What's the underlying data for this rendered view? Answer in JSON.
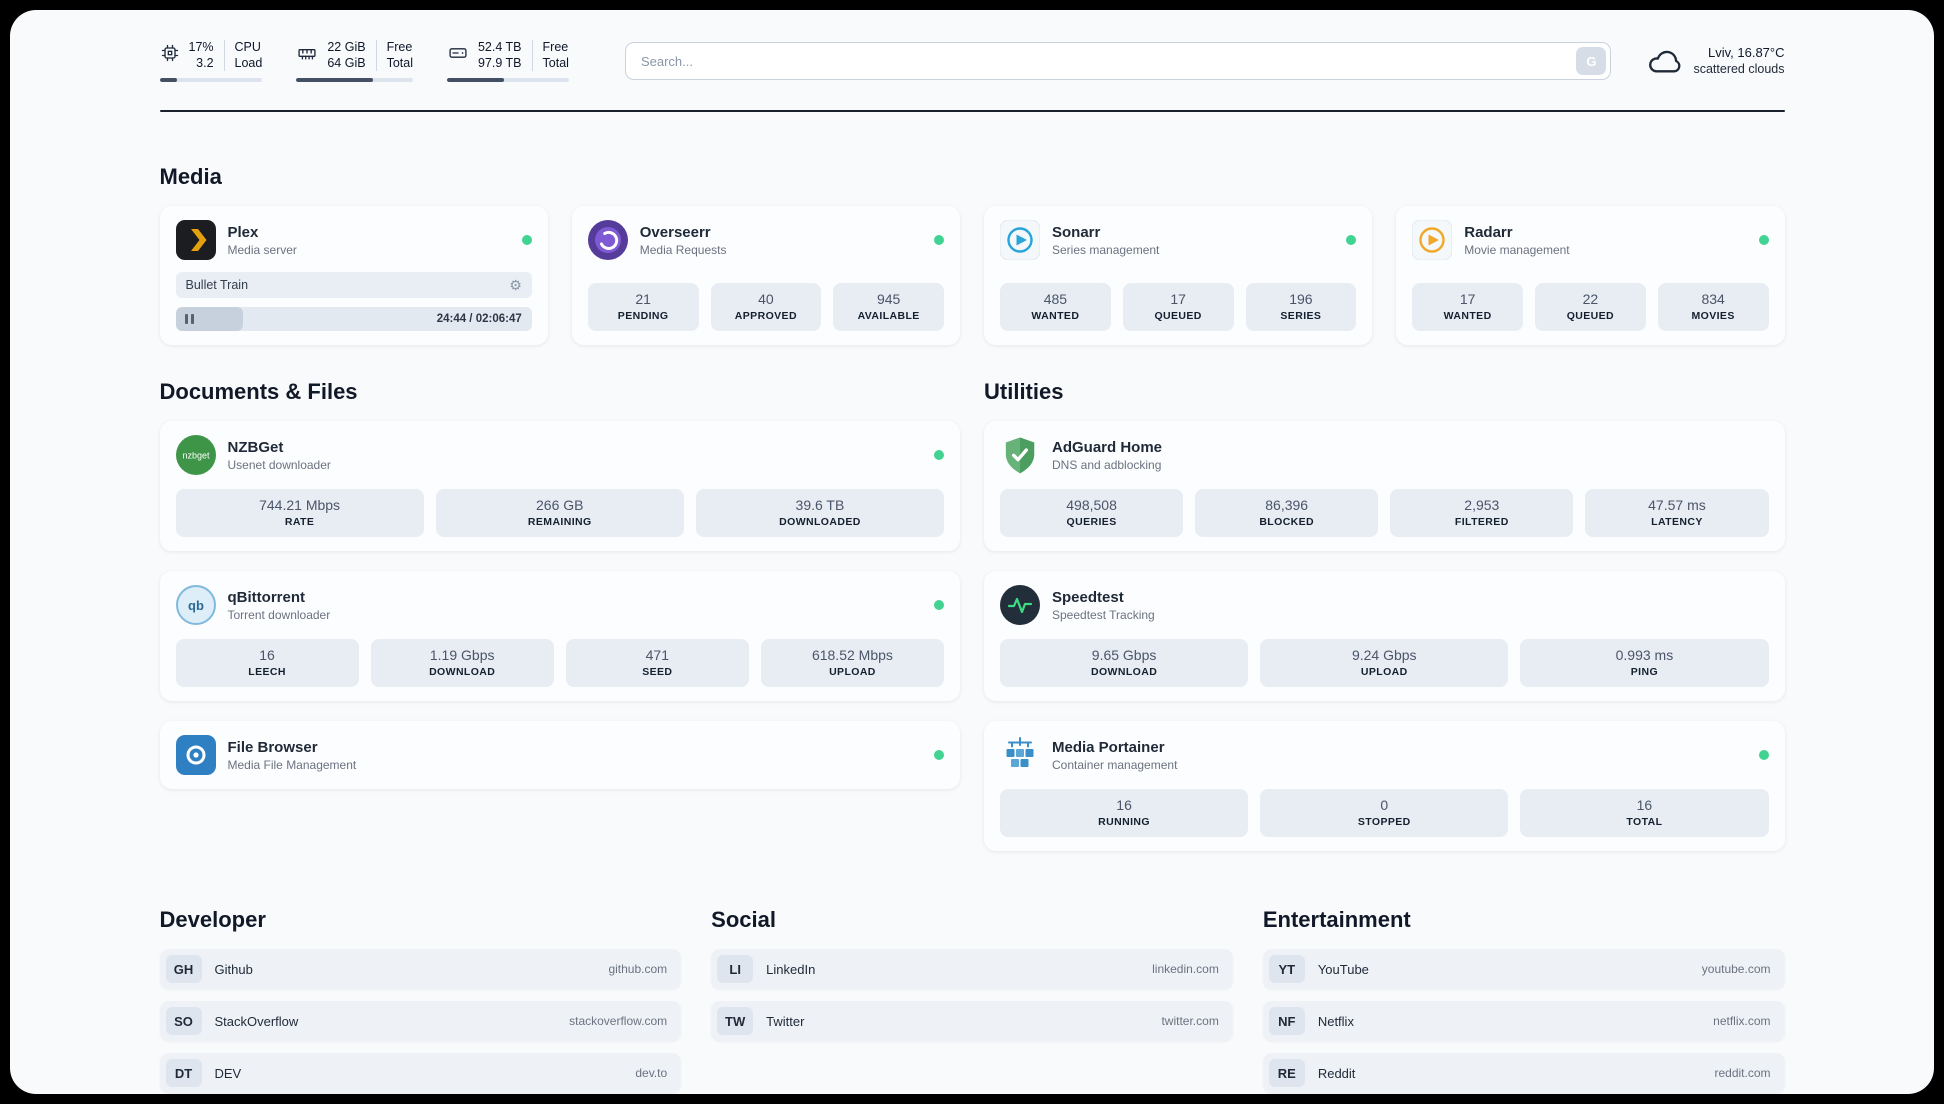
{
  "icons": {
    "gear": "⚙"
  },
  "header": {
    "cpu": {
      "value_top": "17%",
      "value_bottom": "3.2",
      "label_top": "CPU",
      "label_bottom": "Load",
      "progress": 17
    },
    "ram": {
      "value_top": "22 GiB",
      "value_bottom": "64 GiB",
      "label_top": "Free",
      "label_bottom": "Total",
      "progress": 66
    },
    "disk": {
      "value_top": "52.4 TB",
      "value_bottom": "97.9 TB",
      "label_top": "Free",
      "label_bottom": "Total",
      "progress": 47
    },
    "search": {
      "placeholder": "Search...",
      "button_label": "G"
    },
    "weather": {
      "location": "Lviv, 16.87°C",
      "condition": "scattered clouds"
    }
  },
  "sections": {
    "media": {
      "title": "Media",
      "plex": {
        "name": "Plex",
        "subtitle": "Media server",
        "now_playing": "Bullet Train",
        "time": "24:44 / 02:06:47",
        "progress": 19
      },
      "overseerr": {
        "name": "Overseerr",
        "subtitle": "Media Requests",
        "stats": [
          {
            "value": "21",
            "label": "PENDING"
          },
          {
            "value": "40",
            "label": "APPROVED"
          },
          {
            "value": "945",
            "label": "AVAILABLE"
          }
        ]
      },
      "sonarr": {
        "name": "Sonarr",
        "subtitle": "Series management",
        "stats": [
          {
            "value": "485",
            "label": "WANTED"
          },
          {
            "value": "17",
            "label": "QUEUED"
          },
          {
            "value": "196",
            "label": "SERIES"
          }
        ]
      },
      "radarr": {
        "name": "Radarr",
        "subtitle": "Movie management",
        "stats": [
          {
            "value": "17",
            "label": "WANTED"
          },
          {
            "value": "22",
            "label": "QUEUED"
          },
          {
            "value": "834",
            "label": "MOVIES"
          }
        ]
      }
    },
    "documents": {
      "title": "Documents & Files",
      "nzbget": {
        "name": "NZBGet",
        "subtitle": "Usenet downloader",
        "stats": [
          {
            "value": "744.21 Mbps",
            "label": "RATE"
          },
          {
            "value": "266 GB",
            "label": "REMAINING"
          },
          {
            "value": "39.6 TB",
            "label": "DOWNLOADED"
          }
        ]
      },
      "qbittorrent": {
        "name": "qBittorrent",
        "subtitle": "Torrent downloader",
        "stats": [
          {
            "value": "16",
            "label": "LEECH"
          },
          {
            "value": "1.19 Gbps",
            "label": "DOWNLOAD"
          },
          {
            "value": "471",
            "label": "SEED"
          },
          {
            "value": "618.52 Mbps",
            "label": "UPLOAD"
          }
        ]
      },
      "filebrowser": {
        "name": "File Browser",
        "subtitle": "Media File Management"
      }
    },
    "utilities": {
      "title": "Utilities",
      "adguard": {
        "name": "AdGuard Home",
        "subtitle": "DNS and adblocking",
        "stats": [
          {
            "value": "498,508",
            "label": "QUERIES"
          },
          {
            "value": "86,396",
            "label": "BLOCKED"
          },
          {
            "value": "2,953",
            "label": "FILTERED"
          },
          {
            "value": "47.57 ms",
            "label": "LATENCY"
          }
        ]
      },
      "speedtest": {
        "name": "Speedtest",
        "subtitle": "Speedtest Tracking",
        "stats": [
          {
            "value": "9.65 Gbps",
            "label": "DOWNLOAD"
          },
          {
            "value": "9.24 Gbps",
            "label": "UPLOAD"
          },
          {
            "value": "0.993 ms",
            "label": "PING"
          }
        ]
      },
      "portainer": {
        "name": "Media Portainer",
        "subtitle": "Container management",
        "stats": [
          {
            "value": "16",
            "label": "RUNNING"
          },
          {
            "value": "0",
            "label": "STOPPED"
          },
          {
            "value": "16",
            "label": "TOTAL"
          }
        ]
      }
    },
    "developer": {
      "title": "Developer",
      "links": [
        {
          "abbr": "GH",
          "name": "Github",
          "url": "github.com"
        },
        {
          "abbr": "SO",
          "name": "StackOverflow",
          "url": "stackoverflow.com"
        },
        {
          "abbr": "DT",
          "name": "DEV",
          "url": "dev.to"
        }
      ]
    },
    "social": {
      "title": "Social",
      "links": [
        {
          "abbr": "LI",
          "name": "LinkedIn",
          "url": "linkedin.com"
        },
        {
          "abbr": "TW",
          "name": "Twitter",
          "url": "twitter.com"
        }
      ]
    },
    "entertainment": {
      "title": "Entertainment",
      "links": [
        {
          "abbr": "YT",
          "name": "YouTube",
          "url": "youtube.com"
        },
        {
          "abbr": "NF",
          "name": "Netflix",
          "url": "netflix.com"
        },
        {
          "abbr": "RE",
          "name": "Reddit",
          "url": "reddit.com"
        }
      ]
    }
  }
}
